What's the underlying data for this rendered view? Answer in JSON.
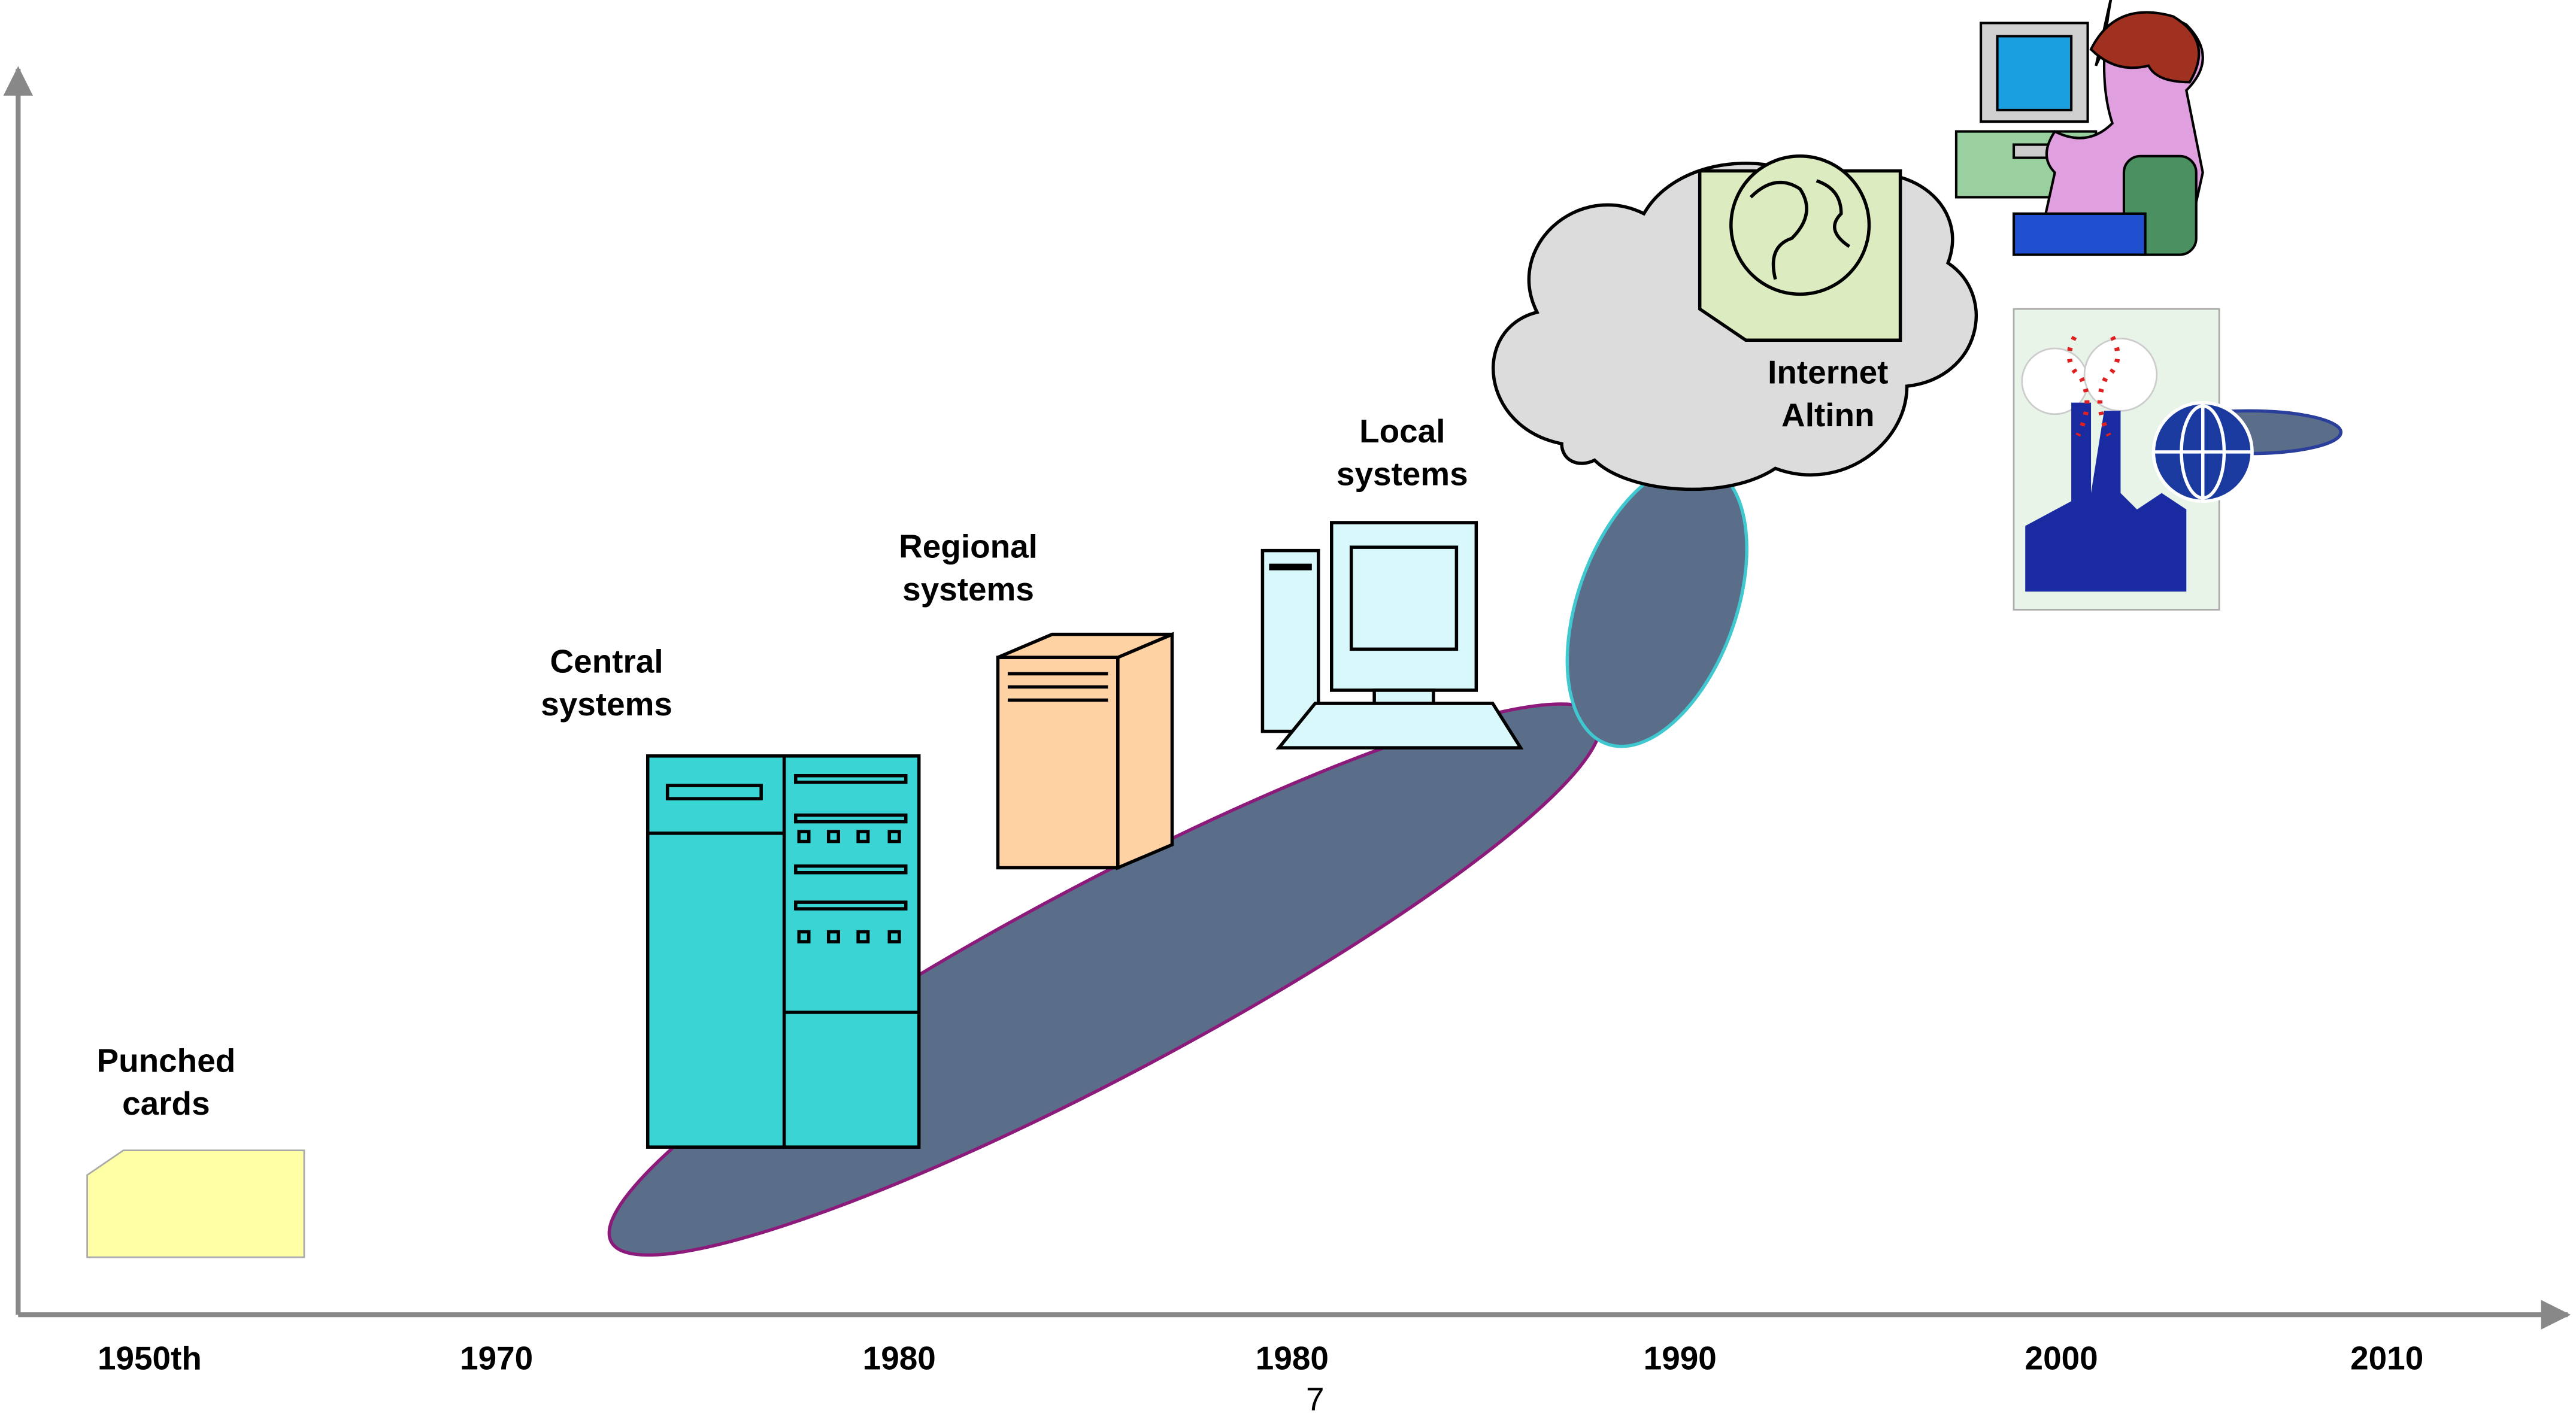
{
  "stages": [
    {
      "lines": [
        "Punched",
        "cards"
      ]
    },
    {
      "lines": [
        "Central",
        "systems"
      ]
    },
    {
      "lines": [
        "Regional",
        "systems"
      ]
    },
    {
      "lines": [
        "Local",
        "systems"
      ]
    },
    {
      "lines": [
        "Internet",
        "Altinn"
      ]
    }
  ],
  "timeline": [
    "1950th",
    "1970",
    "1980",
    "1980",
    "1990",
    "2000",
    "2010"
  ],
  "page_number": "7"
}
